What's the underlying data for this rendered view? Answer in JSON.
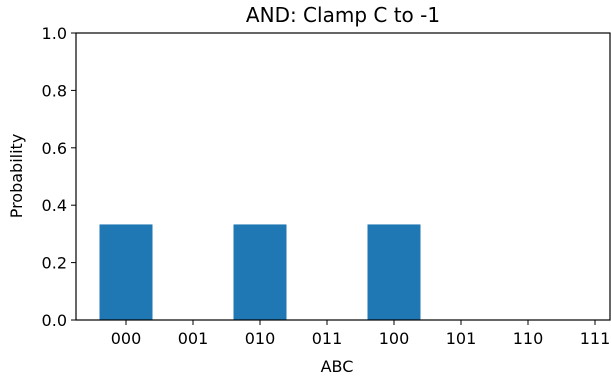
{
  "chart_data": {
    "type": "bar",
    "title": "AND: Clamp C to -1",
    "xlabel": "ABC",
    "ylabel": "Probability",
    "categories": [
      "000",
      "001",
      "010",
      "011",
      "100",
      "101",
      "110",
      "111"
    ],
    "values": [
      0.333,
      0,
      0.333,
      0,
      0.333,
      0,
      0,
      0
    ],
    "ylim": [
      0,
      1.0
    ],
    "yticks": [
      "0.0",
      "0.2",
      "0.4",
      "0.6",
      "0.8",
      "1.0"
    ],
    "bar_color": "#1f77b4",
    "grid": false
  }
}
